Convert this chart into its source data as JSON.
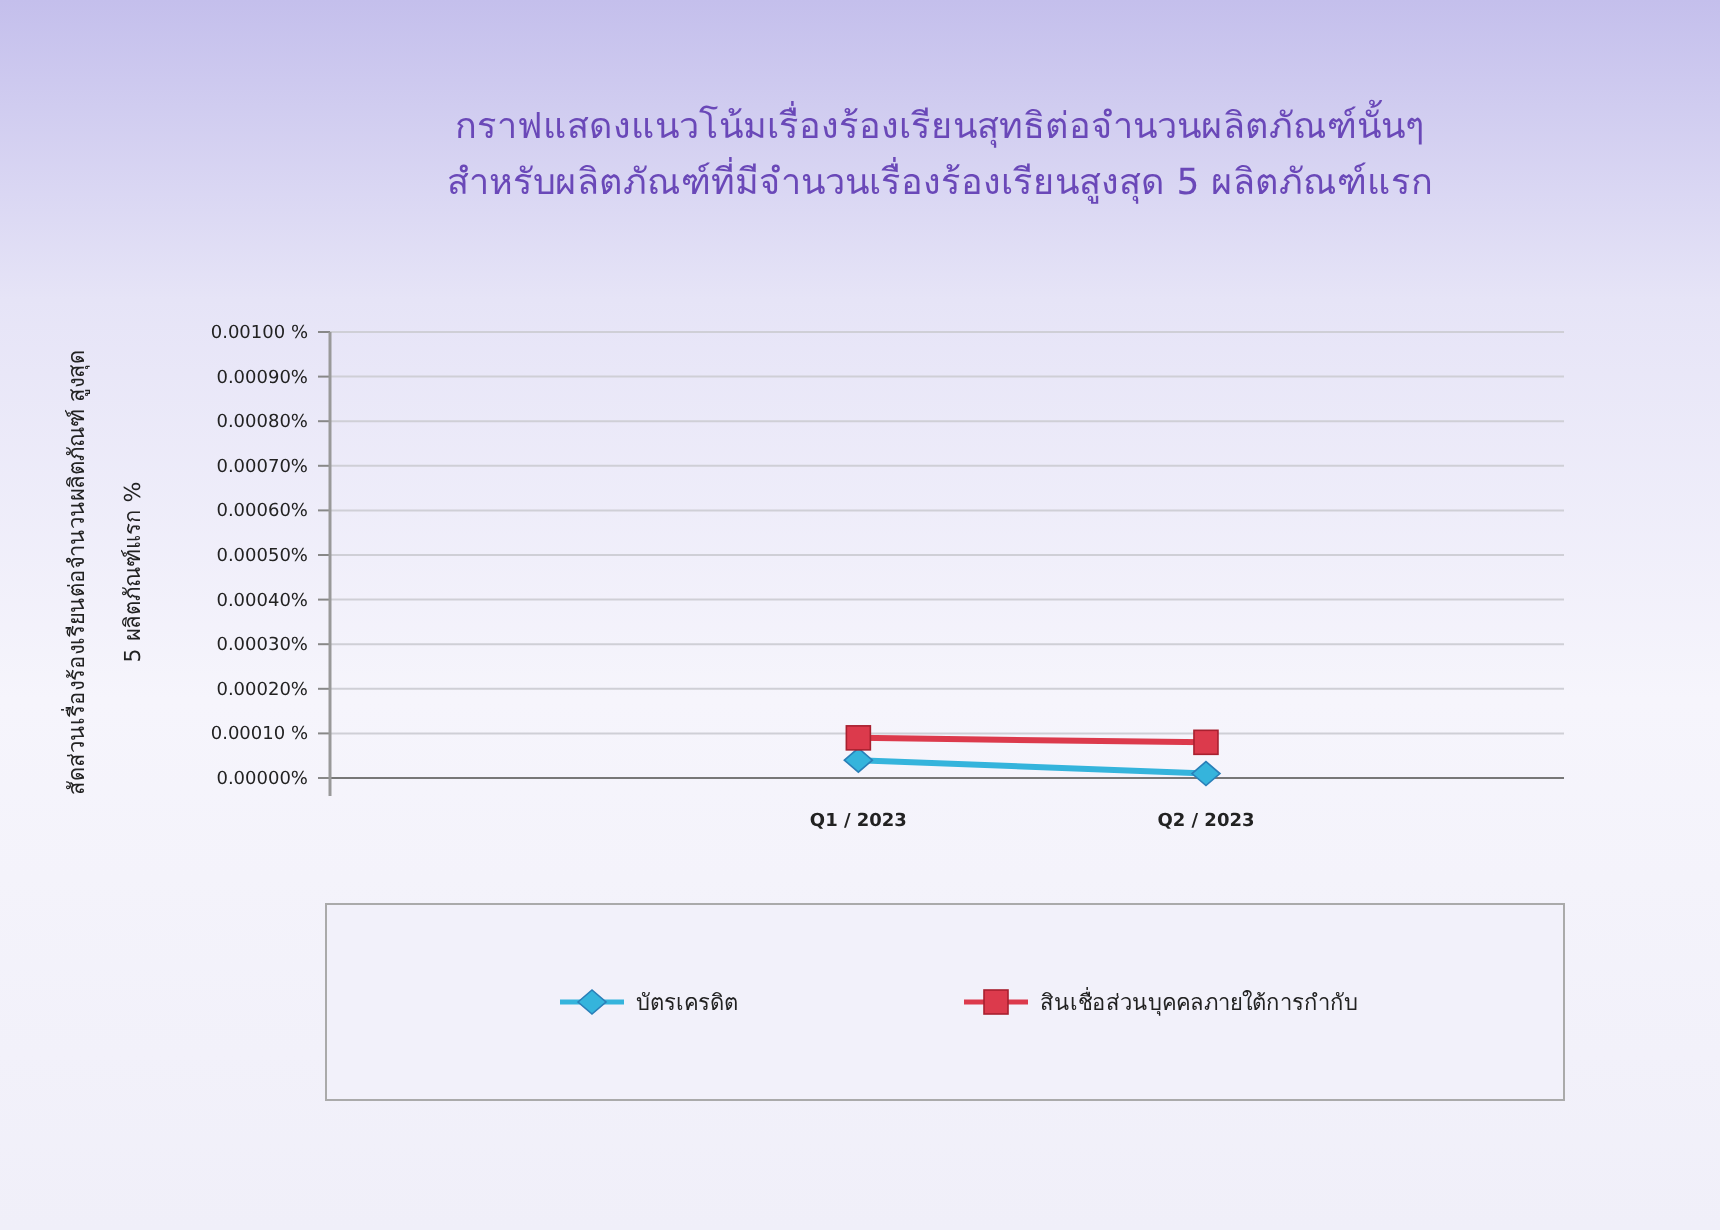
{
  "chart_data": {
    "type": "line",
    "title": "กราฟแสดงแนวโน้มเรื่องร้องเรียนสุทธิต่อจำนวนผลิตภัณฑ์นั้นๆ",
    "subtitle": "สำหรับผลิตภัณฑ์ที่มีจำนวนเรื่องร้องเรียนสูงสุด 5 ผลิตภัณฑ์แรก",
    "ylabel": "สัดส่วนเรื่องร้องเรียนต่อจำนวนผลิตภัณฑ์ สูงสุด 5 ผลิตภัณฑ์แรก %",
    "categories": [
      null,
      "Q1 / 2023",
      "Q2 / 2023"
    ],
    "series": [
      {
        "name": "บัตรเครดิต",
        "color": "#35b4dc",
        "marker": "diamond",
        "values": [
          null,
          4e-05,
          1e-05
        ]
      },
      {
        "name": "สินเชื่อส่วนบุคคลภายใต้การกำกับ",
        "color": "#dc3a4c",
        "marker": "square",
        "values": [
          null,
          9e-05,
          8e-05
        ]
      }
    ],
    "ylim": [
      0,
      0.001
    ],
    "yticks": [
      {
        "value": 0,
        "label": "0.00000%"
      },
      {
        "value": 0.0001,
        "label": "0.00010 %"
      },
      {
        "value": 0.0002,
        "label": "0.00020%"
      },
      {
        "value": 0.0003,
        "label": "0.00030%"
      },
      {
        "value": 0.0004,
        "label": "0.00040%"
      },
      {
        "value": 0.0005,
        "label": "0.00050%"
      },
      {
        "value": 0.0006,
        "label": "0.00060%"
      },
      {
        "value": 0.0007,
        "label": "0.00070%"
      },
      {
        "value": 0.0008,
        "label": "0.00080%"
      },
      {
        "value": 0.0009,
        "label": "0.00090%"
      },
      {
        "value": 0.001,
        "label": "0.00100 %"
      }
    ],
    "grid": "y",
    "legend": "bottom"
  }
}
